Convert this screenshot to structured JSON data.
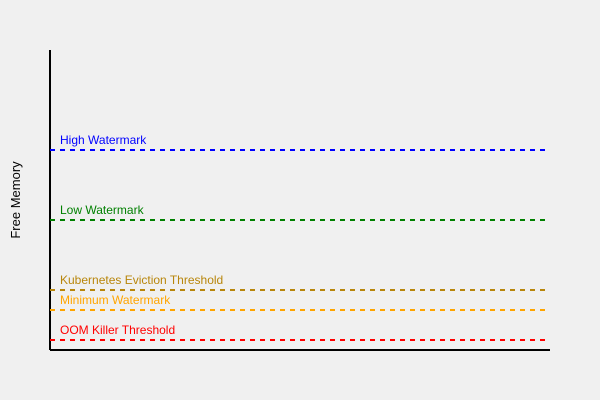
{
  "y_axis_label": "Free Memory",
  "thresholds": [
    {
      "label": "High Watermark",
      "color": "#0000ff"
    },
    {
      "label": "Low Watermark",
      "color": "#008000"
    },
    {
      "label": "Kubernetes Eviction Threshold",
      "color": "#b8860b"
    },
    {
      "label": "Minimum Watermark",
      "color": "#ffa500"
    },
    {
      "label": "OOM Killer Threshold",
      "color": "#ff0000"
    }
  ]
}
